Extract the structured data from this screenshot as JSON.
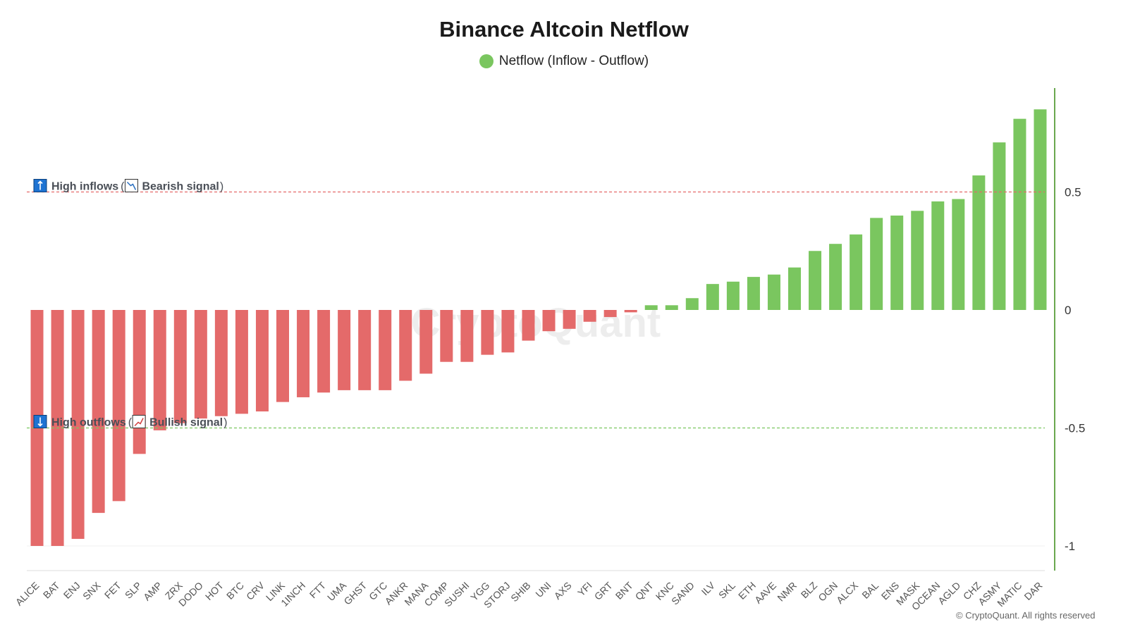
{
  "colors": {
    "positive": "#7ac65f",
    "negative": "#e46a6a",
    "inflow_line": "#e46a6a",
    "outflow_line": "#7ac65f",
    "axis": "#6aa84f",
    "icon_blue": "#1e73d2"
  },
  "annotations": {
    "high_inflows": {
      "label": "High inflows",
      "open_paren": "(",
      "signal": "Bearish signal",
      "close_paren": ")",
      "level": 0.5
    },
    "high_outflows": {
      "label": "High outflows",
      "open_paren": "(",
      "signal": "Bullish signal",
      "close_paren": ")",
      "level": -0.5
    }
  },
  "watermark": "CryptoQuant",
  "copyright": "© CryptoQuant. All rights reserved",
  "chart_data": {
    "type": "bar",
    "title": "Binance Altcoin Netflow",
    "legend": "Netflow (Inflow - Outflow)",
    "legend_position": "top-center",
    "categories": [
      "ALICE",
      "BAT",
      "ENJ",
      "SNX",
      "FET",
      "SLP",
      "AMP",
      "ZRX",
      "DODO",
      "HOT",
      "BTC",
      "CRV",
      "LINK",
      "1INCH",
      "FTT",
      "UMA",
      "GHST",
      "GTC",
      "ANKR",
      "MANA",
      "COMP",
      "SUSHI",
      "YGG",
      "STORJ",
      "SHIB",
      "UNI",
      "AXS",
      "YFI",
      "GRT",
      "BNT",
      "QNT",
      "KNC",
      "SAND",
      "ILV",
      "SKL",
      "ETH",
      "AAVE",
      "NMR",
      "BLZ",
      "OGN",
      "ALCX",
      "BAL",
      "ENS",
      "MASK",
      "OCEAN",
      "AGLD",
      "CHZ",
      "ASMY",
      "MATIC",
      "DAR"
    ],
    "series": [
      {
        "name": "Netflow (Inflow - Outflow)",
        "values": [
          -1.0,
          -1.0,
          -0.97,
          -0.86,
          -0.81,
          -0.61,
          -0.51,
          -0.48,
          -0.46,
          -0.45,
          -0.44,
          -0.43,
          -0.39,
          -0.37,
          -0.35,
          -0.34,
          -0.34,
          -0.34,
          -0.3,
          -0.27,
          -0.22,
          -0.22,
          -0.19,
          -0.18,
          -0.13,
          -0.09,
          -0.08,
          -0.05,
          -0.03,
          -0.01,
          0.02,
          0.02,
          0.05,
          0.11,
          0.12,
          0.14,
          0.15,
          0.18,
          0.25,
          0.28,
          0.32,
          0.39,
          0.4,
          0.42,
          0.46,
          0.47,
          0.57,
          0.71,
          0.81,
          0.85
        ]
      }
    ],
    "yaxis_position": "right",
    "ylim": [
      -1.1,
      0.95
    ],
    "yticks": [
      0.5,
      0,
      -0.5,
      -1
    ],
    "ytick_labels": [
      "0.5",
      "0",
      "-0.5",
      "-1"
    ],
    "grid": false
  }
}
